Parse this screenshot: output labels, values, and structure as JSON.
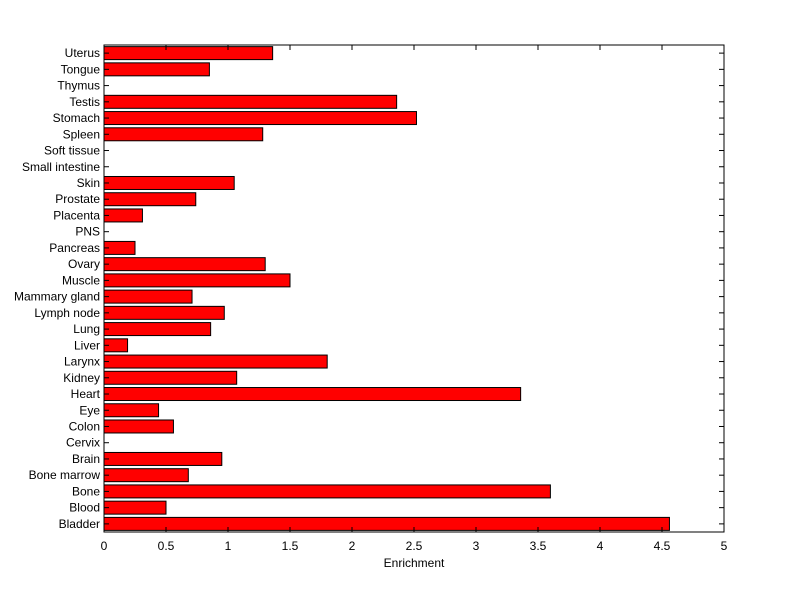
{
  "chart_data": {
    "type": "bar",
    "orientation": "horizontal",
    "categories": [
      "Uterus",
      "Tongue",
      "Thymus",
      "Testis",
      "Stomach",
      "Spleen",
      "Soft tissue",
      "Small intestine",
      "Skin",
      "Prostate",
      "Placenta",
      "PNS",
      "Pancreas",
      "Ovary",
      "Muscle",
      "Mammary gland",
      "Lymph node",
      "Lung",
      "Liver",
      "Larynx",
      "Kidney",
      "Heart",
      "Eye",
      "Colon",
      "Cervix",
      "Brain",
      "Bone marrow",
      "Bone",
      "Blood",
      "Bladder"
    ],
    "values": [
      1.36,
      0.85,
      0,
      2.36,
      2.52,
      1.28,
      0,
      0,
      1.05,
      0.74,
      0.31,
      0,
      0.25,
      1.3,
      1.5,
      0.71,
      0.97,
      0.86,
      0.19,
      1.8,
      1.07,
      3.36,
      0.44,
      0.56,
      0,
      0.95,
      0.68,
      3.6,
      0.5,
      4.56
    ],
    "xlabel": "Enrichment",
    "ylabel": "",
    "title": "",
    "xlim": [
      0,
      5
    ],
    "xticks": [
      0,
      0.5,
      1,
      1.5,
      2,
      2.5,
      3,
      3.5,
      4,
      4.5,
      5
    ],
    "xtick_labels": [
      "0",
      "0.5",
      "1",
      "1.5",
      "2",
      "2.5",
      "3",
      "3.5",
      "4",
      "4.5",
      "5"
    ],
    "bar_color": "#ff0000",
    "edge_color": "#000000",
    "grid": false,
    "legend": "none"
  }
}
